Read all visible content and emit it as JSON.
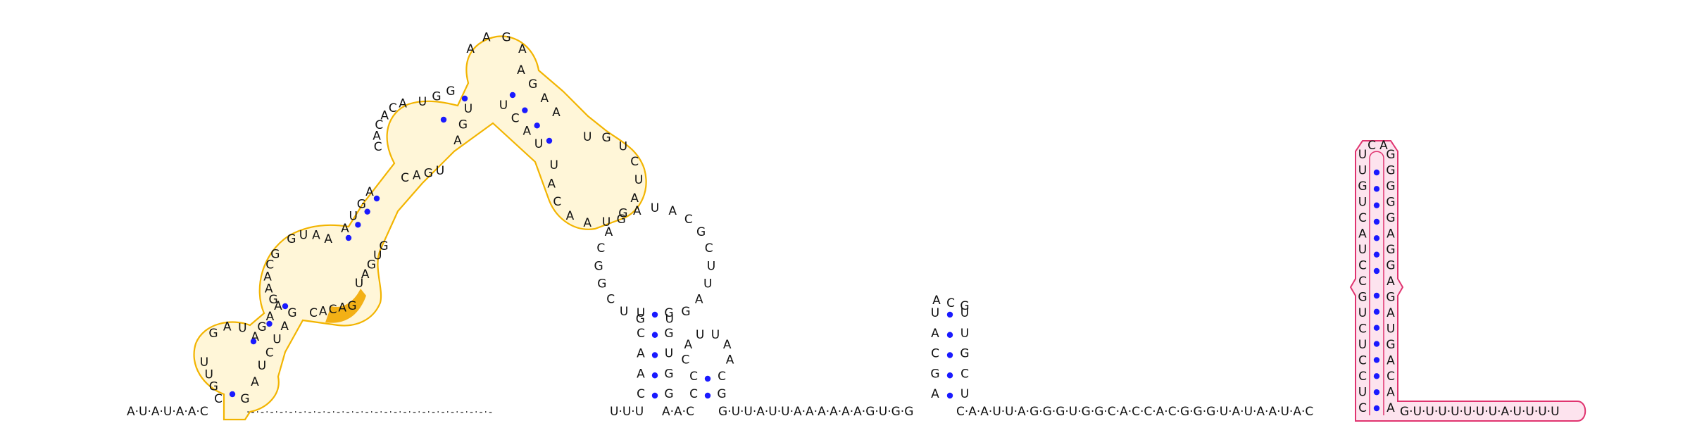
{
  "colors": {
    "domain_outline": "#f2b400",
    "domain_fill": "#fff6d8",
    "domain_highlight": "#f2a900",
    "pink_outline": "#e0336f",
    "pink_fill": "#fde3ee",
    "pair_dot": "#1a1aff",
    "text": "#111111"
  },
  "sequence": {
    "five_prime": "A·U·A·U·A·A·C",
    "spacer": "·-·-·-·-·-·-·-·-·-·-·-·-·-·-·-·-·-·-·-·-·-·-·-·-·-·-",
    "linker_a": "U·U·U",
    "linker_b": "A·A·C",
    "middle": "G·U·U·A·U·U·A·A·A·A·A·A·G·U·G·G",
    "after_hairpin": "C·A·A·U·U·A·G·G·G·U·G·G·C·A·C·C·A·C·G·G·G·U·A·U·A·A·U·A·C",
    "three_prime_tail": "G·U·U·U·U·U·U·U·A·U·U·U·U"
  },
  "domain": {
    "stem1_left": [
      "C",
      "G",
      "U",
      "U"
    ],
    "stem1_right": [
      "G",
      "A"
    ],
    "loop1": [
      "G",
      "A",
      "U",
      "A"
    ],
    "stem2_left": [
      "G",
      "A",
      "A"
    ],
    "stem2_right": [
      "U",
      "C",
      "U",
      "A",
      "G"
    ],
    "bulge_left": [
      "G",
      "A",
      "A",
      "C",
      "G"
    ],
    "bulge_top": [
      "G",
      "U",
      "A",
      "A"
    ],
    "bulge_right": [
      "C",
      "A",
      "C",
      "A",
      "G"
    ],
    "stem3_left": [
      "A",
      "U",
      "G",
      "A"
    ],
    "stem3_right": [
      "U",
      "A",
      "G",
      "U",
      "G"
    ],
    "loop3_left": [
      "C",
      "A",
      "C",
      "A",
      "C",
      "A"
    ],
    "loop3_right": [
      "C",
      "A",
      "G",
      "U"
    ],
    "stem4_left": [
      "U",
      "G",
      "G"
    ],
    "stem4_right": [
      "A",
      "G",
      "U"
    ],
    "apex": [
      "A",
      "A",
      "G",
      "A"
    ],
    "stem5_left": [
      "A",
      "G",
      "A",
      "A"
    ],
    "stem5_right": [
      "U",
      "C",
      "A",
      "U"
    ],
    "loop5": [
      "U",
      "G",
      "U",
      "C",
      "U",
      "A",
      "G",
      "U",
      "A",
      "A",
      "C",
      "A",
      "U"
    ]
  },
  "hairpin_a": {
    "stem_left": [
      "C",
      "A",
      "A",
      "C",
      "U"
    ],
    "stem_right": [
      "G",
      "G",
      "U",
      "G",
      "G"
    ],
    "loop": [
      "G",
      "U",
      "C",
      "G",
      "G",
      "C",
      "A",
      "G",
      "A",
      "U",
      "A",
      "C",
      "G",
      "C",
      "U",
      "U",
      "A",
      "G",
      "U"
    ]
  },
  "hairpin_b": {
    "stem_left": [
      "C",
      "C"
    ],
    "stem_right": [
      "G",
      "C"
    ],
    "loop": [
      "C",
      "A",
      "U",
      "U",
      "A",
      "A"
    ]
  },
  "hairpin_c": {
    "stem_left": [
      "A",
      "G",
      "C",
      "A",
      "U"
    ],
    "stem_right": [
      "U",
      "C",
      "G",
      "U",
      "U"
    ],
    "loop": [
      "A",
      "C",
      "G"
    ]
  },
  "terminator": {
    "left_strand": [
      "C",
      "U",
      "C",
      "C",
      "U",
      "C",
      "U",
      "G",
      "C",
      "C",
      "U",
      "A",
      "C",
      "U",
      "G",
      "U",
      "U"
    ],
    "loop": [
      "C",
      "A"
    ],
    "right_strand": [
      "A",
      "A",
      "C",
      "A",
      "G",
      "U",
      "A",
      "G",
      "A",
      "G",
      "G",
      "A",
      "G",
      "G",
      "G",
      "G",
      "G"
    ]
  }
}
